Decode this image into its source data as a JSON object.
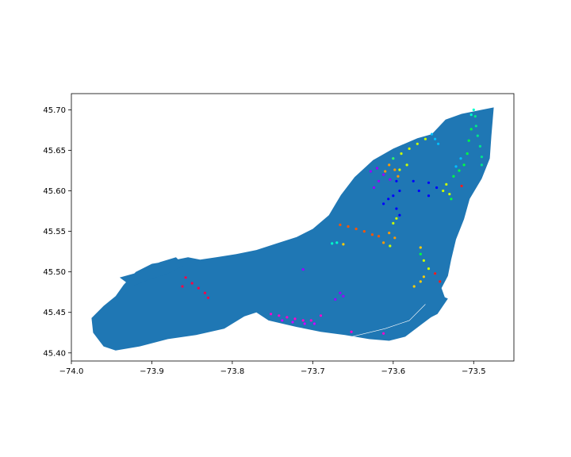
{
  "map": {
    "type": "map",
    "land_color": "#1f77b4",
    "water_color": "#ffffff",
    "xlim": [
      -74.0,
      -73.45
    ],
    "ylim": [
      45.39,
      45.72
    ],
    "x_ticks": [
      {
        "value": -74.0,
        "label": "−74.0"
      },
      {
        "value": -73.9,
        "label": "−73.9"
      },
      {
        "value": -73.8,
        "label": "−73.8"
      },
      {
        "value": -73.7,
        "label": "−73.7"
      },
      {
        "value": -73.6,
        "label": "−73.6"
      },
      {
        "value": -73.5,
        "label": "−73.5"
      }
    ],
    "y_ticks": [
      {
        "value": 45.4,
        "label": "45.40"
      },
      {
        "value": 45.45,
        "label": "45.45"
      },
      {
        "value": 45.5,
        "label": "45.50"
      },
      {
        "value": 45.55,
        "label": "45.55"
      },
      {
        "value": 45.6,
        "label": "45.60"
      },
      {
        "value": 45.65,
        "label": "45.65"
      },
      {
        "value": 45.7,
        "label": "45.70"
      }
    ],
    "island_outline": [
      [
        -73.975,
        45.443
      ],
      [
        -73.973,
        45.425
      ],
      [
        -73.96,
        45.408
      ],
      [
        -73.945,
        45.403
      ],
      [
        -73.915,
        45.408
      ],
      [
        -73.88,
        45.417
      ],
      [
        -73.845,
        45.422
      ],
      [
        -73.81,
        45.43
      ],
      [
        -73.785,
        45.445
      ],
      [
        -73.77,
        45.45
      ],
      [
        -73.755,
        45.44
      ],
      [
        -73.72,
        45.432
      ],
      [
        -73.69,
        45.426
      ],
      [
        -73.66,
        45.422
      ],
      [
        -73.63,
        45.417
      ],
      [
        -73.605,
        45.415
      ],
      [
        -73.585,
        45.42
      ],
      [
        -73.565,
        45.435
      ],
      [
        -73.545,
        45.45
      ],
      [
        -73.535,
        45.466
      ],
      [
        -73.54,
        45.48
      ],
      [
        -73.532,
        45.495
      ],
      [
        -73.528,
        45.515
      ],
      [
        -73.522,
        45.54
      ],
      [
        -73.512,
        45.565
      ],
      [
        -73.505,
        45.59
      ],
      [
        -73.49,
        45.615
      ],
      [
        -73.48,
        45.64
      ],
      [
        -73.478,
        45.668
      ],
      [
        -73.475,
        45.703
      ],
      [
        -73.49,
        45.7
      ],
      [
        -73.515,
        45.695
      ],
      [
        -73.535,
        45.688
      ],
      [
        -73.552,
        45.67
      ],
      [
        -73.57,
        45.665
      ],
      [
        -73.6,
        45.652
      ],
      [
        -73.625,
        45.638
      ],
      [
        -73.648,
        45.617
      ],
      [
        -73.665,
        45.595
      ],
      [
        -73.68,
        45.57
      ],
      [
        -73.7,
        45.553
      ],
      [
        -73.72,
        45.543
      ],
      [
        -73.745,
        45.535
      ],
      [
        -73.77,
        45.527
      ],
      [
        -73.795,
        45.522
      ],
      [
        -73.82,
        45.518
      ],
      [
        -73.84,
        45.515
      ],
      [
        -73.855,
        45.518
      ],
      [
        -73.875,
        45.514
      ],
      [
        -73.9,
        45.51
      ],
      [
        -73.92,
        45.5
      ],
      [
        -73.935,
        45.484
      ],
      [
        -73.945,
        45.47
      ],
      [
        -73.96,
        45.458
      ]
    ],
    "ile_bizard_outline": [
      [
        -73.94,
        45.493
      ],
      [
        -73.915,
        45.5
      ],
      [
        -73.89,
        45.512
      ],
      [
        -73.87,
        45.518
      ],
      [
        -73.86,
        45.508
      ],
      [
        -73.88,
        45.498
      ],
      [
        -73.905,
        45.49
      ],
      [
        -73.925,
        45.482
      ]
    ],
    "nuns_island_outline": [
      [
        -73.565,
        45.438
      ],
      [
        -73.545,
        45.448
      ],
      [
        -73.532,
        45.467
      ],
      [
        -73.548,
        45.474
      ],
      [
        -73.56,
        45.455
      ],
      [
        -73.575,
        45.44
      ]
    ],
    "points": [
      {
        "lon": -73.498,
        "lat": 45.692,
        "color": "#00e68a"
      },
      {
        "lon": -73.497,
        "lat": 45.68,
        "color": "#00e68a"
      },
      {
        "lon": -73.495,
        "lat": 45.668,
        "color": "#00e68a"
      },
      {
        "lon": -73.492,
        "lat": 45.655,
        "color": "#00e68a"
      },
      {
        "lon": -73.49,
        "lat": 45.642,
        "color": "#00e68a"
      },
      {
        "lon": -73.49,
        "lat": 45.632,
        "color": "#00e68a"
      },
      {
        "lon": -73.503,
        "lat": 45.676,
        "color": "#00ff40"
      },
      {
        "lon": -73.506,
        "lat": 45.662,
        "color": "#00ff40"
      },
      {
        "lon": -73.508,
        "lat": 45.646,
        "color": "#00ff40"
      },
      {
        "lon": -73.512,
        "lat": 45.632,
        "color": "#00ff40"
      },
      {
        "lon": -73.518,
        "lat": 45.625,
        "color": "#00ff40"
      },
      {
        "lon": -73.525,
        "lat": 45.618,
        "color": "#00ff40"
      },
      {
        "lon": -73.515,
        "lat": 45.606,
        "color": "#ff1a1a"
      },
      {
        "lon": -73.528,
        "lat": 45.59,
        "color": "#00ff40"
      },
      {
        "lon": -73.503,
        "lat": 45.694,
        "color": "#00ffcc"
      },
      {
        "lon": -73.5,
        "lat": 45.7,
        "color": "#00ffcc"
      },
      {
        "lon": -73.552,
        "lat": 45.67,
        "color": "#00bfff"
      },
      {
        "lon": -73.548,
        "lat": 45.664,
        "color": "#00bfff"
      },
      {
        "lon": -73.544,
        "lat": 45.658,
        "color": "#00bfff"
      },
      {
        "lon": -73.56,
        "lat": 45.664,
        "color": "#ccff00"
      },
      {
        "lon": -73.57,
        "lat": 45.658,
        "color": "#ccff00"
      },
      {
        "lon": -73.58,
        "lat": 45.652,
        "color": "#ccff00"
      },
      {
        "lon": -73.59,
        "lat": 45.646,
        "color": "#ccff00"
      },
      {
        "lon": -73.583,
        "lat": 45.632,
        "color": "#ccff00"
      },
      {
        "lon": -73.592,
        "lat": 45.626,
        "color": "#ccff00"
      },
      {
        "lon": -73.6,
        "lat": 45.64,
        "color": "#33ff66"
      },
      {
        "lon": -73.605,
        "lat": 45.632,
        "color": "#ff9900"
      },
      {
        "lon": -73.598,
        "lat": 45.626,
        "color": "#ff9900"
      },
      {
        "lon": -73.594,
        "lat": 45.618,
        "color": "#ff9900"
      },
      {
        "lon": -73.61,
        "lat": 45.624,
        "color": "#ff9900"
      },
      {
        "lon": -73.628,
        "lat": 45.624,
        "color": "#9900ff"
      },
      {
        "lon": -73.62,
        "lat": 45.628,
        "color": "#9900ff"
      },
      {
        "lon": -73.612,
        "lat": 45.62,
        "color": "#9900ff"
      },
      {
        "lon": -73.604,
        "lat": 45.614,
        "color": "#9900ff"
      },
      {
        "lon": -73.618,
        "lat": 45.612,
        "color": "#9900ff"
      },
      {
        "lon": -73.624,
        "lat": 45.604,
        "color": "#9900ff"
      },
      {
        "lon": -73.596,
        "lat": 45.612,
        "color": "#0000ff"
      },
      {
        "lon": -73.592,
        "lat": 45.6,
        "color": "#0000ff"
      },
      {
        "lon": -73.6,
        "lat": 45.594,
        "color": "#0000ff"
      },
      {
        "lon": -73.606,
        "lat": 45.59,
        "color": "#0000ff"
      },
      {
        "lon": -73.612,
        "lat": 45.584,
        "color": "#0000ff"
      },
      {
        "lon": -73.596,
        "lat": 45.578,
        "color": "#0000ff"
      },
      {
        "lon": -73.592,
        "lat": 45.57,
        "color": "#0000ff"
      },
      {
        "lon": -73.575,
        "lat": 45.612,
        "color": "#0000ff"
      },
      {
        "lon": -73.568,
        "lat": 45.6,
        "color": "#0000ff"
      },
      {
        "lon": -73.556,
        "lat": 45.61,
        "color": "#0000ff"
      },
      {
        "lon": -73.546,
        "lat": 45.604,
        "color": "#0000ff"
      },
      {
        "lon": -73.556,
        "lat": 45.594,
        "color": "#0000ff"
      },
      {
        "lon": -73.538,
        "lat": 45.6,
        "color": "#ccff00"
      },
      {
        "lon": -73.534,
        "lat": 45.608,
        "color": "#ccff00"
      },
      {
        "lon": -73.53,
        "lat": 45.596,
        "color": "#ccff00"
      },
      {
        "lon": -73.516,
        "lat": 45.64,
        "color": "#00bfff"
      },
      {
        "lon": -73.522,
        "lat": 45.63,
        "color": "#00bfff"
      },
      {
        "lon": -73.596,
        "lat": 45.566,
        "color": "#ccff00"
      },
      {
        "lon": -73.6,
        "lat": 45.56,
        "color": "#ccff00"
      },
      {
        "lon": -73.605,
        "lat": 45.548,
        "color": "#ff9900"
      },
      {
        "lon": -73.598,
        "lat": 45.542,
        "color": "#ff9900"
      },
      {
        "lon": -73.612,
        "lat": 45.536,
        "color": "#ff9900"
      },
      {
        "lon": -73.604,
        "lat": 45.532,
        "color": "#ccff00"
      },
      {
        "lon": -73.666,
        "lat": 45.558,
        "color": "#ff5500"
      },
      {
        "lon": -73.656,
        "lat": 45.556,
        "color": "#ff5500"
      },
      {
        "lon": -73.646,
        "lat": 45.553,
        "color": "#ff5500"
      },
      {
        "lon": -73.636,
        "lat": 45.55,
        "color": "#ff5500"
      },
      {
        "lon": -73.626,
        "lat": 45.546,
        "color": "#ff5500"
      },
      {
        "lon": -73.618,
        "lat": 45.544,
        "color": "#ff5500"
      },
      {
        "lon": -73.676,
        "lat": 45.535,
        "color": "#00ffcc"
      },
      {
        "lon": -73.67,
        "lat": 45.536,
        "color": "#00ffcc"
      },
      {
        "lon": -73.662,
        "lat": 45.534,
        "color": "#ffcc00"
      },
      {
        "lon": -73.566,
        "lat": 45.522,
        "color": "#00ff40"
      },
      {
        "lon": -73.562,
        "lat": 45.514,
        "color": "#ccff00"
      },
      {
        "lon": -73.556,
        "lat": 45.504,
        "color": "#ccff00"
      },
      {
        "lon": -73.562,
        "lat": 45.494,
        "color": "#ffcc00"
      },
      {
        "lon": -73.566,
        "lat": 45.488,
        "color": "#ffcc00"
      },
      {
        "lon": -73.574,
        "lat": 45.482,
        "color": "#ffcc00"
      },
      {
        "lon": -73.566,
        "lat": 45.53,
        "color": "#ffcc00"
      },
      {
        "lon": -73.548,
        "lat": 45.498,
        "color": "#ff1a1a"
      },
      {
        "lon": -73.542,
        "lat": 45.488,
        "color": "#ff1a1a"
      },
      {
        "lon": -73.858,
        "lat": 45.493,
        "color": "#ff0044"
      },
      {
        "lon": -73.85,
        "lat": 45.486,
        "color": "#ff0044"
      },
      {
        "lon": -73.842,
        "lat": 45.48,
        "color": "#ff0044"
      },
      {
        "lon": -73.834,
        "lat": 45.474,
        "color": "#ff0044"
      },
      {
        "lon": -73.83,
        "lat": 45.468,
        "color": "#ff0044"
      },
      {
        "lon": -73.862,
        "lat": 45.482,
        "color": "#ff0044"
      },
      {
        "lon": -73.712,
        "lat": 45.503,
        "color": "#9900ff"
      },
      {
        "lon": -73.666,
        "lat": 45.474,
        "color": "#9900ff"
      },
      {
        "lon": -73.672,
        "lat": 45.466,
        "color": "#9900ff"
      },
      {
        "lon": -73.662,
        "lat": 45.47,
        "color": "#9900ff"
      },
      {
        "lon": -73.752,
        "lat": 45.448,
        "color": "#ff00cc"
      },
      {
        "lon": -73.742,
        "lat": 45.446,
        "color": "#ff00cc"
      },
      {
        "lon": -73.732,
        "lat": 45.444,
        "color": "#ff00cc"
      },
      {
        "lon": -73.722,
        "lat": 45.442,
        "color": "#ff00cc"
      },
      {
        "lon": -73.712,
        "lat": 45.44,
        "color": "#ff00cc"
      },
      {
        "lon": -73.702,
        "lat": 45.44,
        "color": "#ff00cc"
      },
      {
        "lon": -73.69,
        "lat": 45.446,
        "color": "#ff00cc"
      },
      {
        "lon": -73.738,
        "lat": 45.44,
        "color": "#cc00ff"
      },
      {
        "lon": -73.725,
        "lat": 45.438,
        "color": "#cc00ff"
      },
      {
        "lon": -73.71,
        "lat": 45.436,
        "color": "#cc00ff"
      },
      {
        "lon": -73.698,
        "lat": 45.436,
        "color": "#cc00ff"
      },
      {
        "lon": -73.652,
        "lat": 45.426,
        "color": "#ff00cc"
      },
      {
        "lon": -73.612,
        "lat": 45.424,
        "color": "#ff00cc"
      }
    ]
  }
}
